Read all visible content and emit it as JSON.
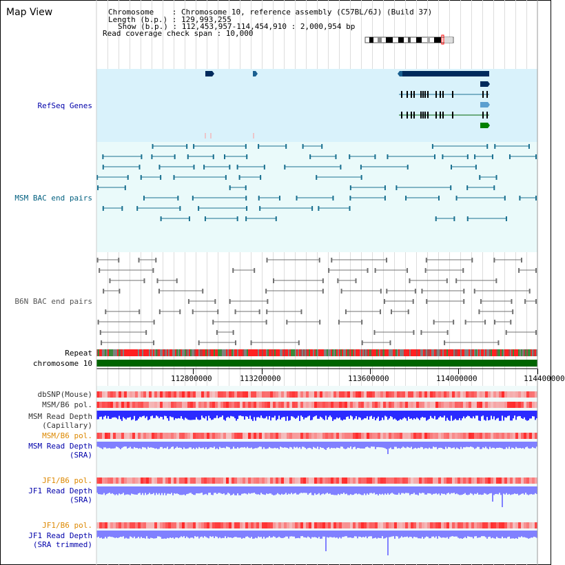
{
  "title": "Map View",
  "info": {
    "chromosome_key": "Chromosome",
    "chromosome_val": ": Chromosome 10, reference assembly (C57BL/6J) (Build 37)",
    "length_key": "Length (b.p.)",
    "length_val": ": 129,993,255",
    "show_key": "Show (b.p.)",
    "show_val": ": 112,453,957-114,454,910 : 2,000,954 bp",
    "read_span": "Read coverage check span : 10,000"
  },
  "tracks": {
    "refseq": "RefSeq Genes",
    "msm_bac": "MSM BAC end pairs",
    "b6n_bac": "B6N BAC end pairs",
    "repeat": "Repeat",
    "chromosome": "chromosome 10",
    "dbsnp": "dbSNP(Mouse)",
    "msm_b6_pol_1": "MSM/B6 pol.",
    "msm_read_depth_cap_1": "MSM Read Depth",
    "msm_read_depth_cap_2": "(Capillary)",
    "msm_b6_pol_2": "MSM/B6 pol.",
    "msm_read_depth_sra_1": "MSM Read Depth",
    "msm_read_depth_sra_2": "(SRA)",
    "jf1_b6_pol_1": "JF1/B6 pol.",
    "jf1_read_depth_sra_1": "JF1 Read Depth",
    "jf1_read_depth_sra_2": "(SRA)",
    "jf1_b6_pol_2": "JF1/B6 pol.",
    "jf1_read_depth_trim_1": "JF1 Read Depth",
    "jf1_read_depth_trim_2": "(SRA trimmed)"
  },
  "ruler": {
    "labels": [
      "112800000",
      "113200000",
      "113600000",
      "114000000",
      "114400000"
    ]
  },
  "colors": {
    "refseq_bg": "#d9f2fb",
    "bac_bg": "#eafafa",
    "b6n_bg": "#ffffff",
    "gene_dark": "#002a5c",
    "msm_feature": "#1a7090",
    "b6n_feature": "#707070",
    "chromosome": "#006400",
    "label_blue": "#0000aa",
    "label_teal": "#005f7f",
    "label_orange": "#dd8800",
    "depth_blue": "#2b2bff",
    "depth_light": "#8080ff"
  }
}
